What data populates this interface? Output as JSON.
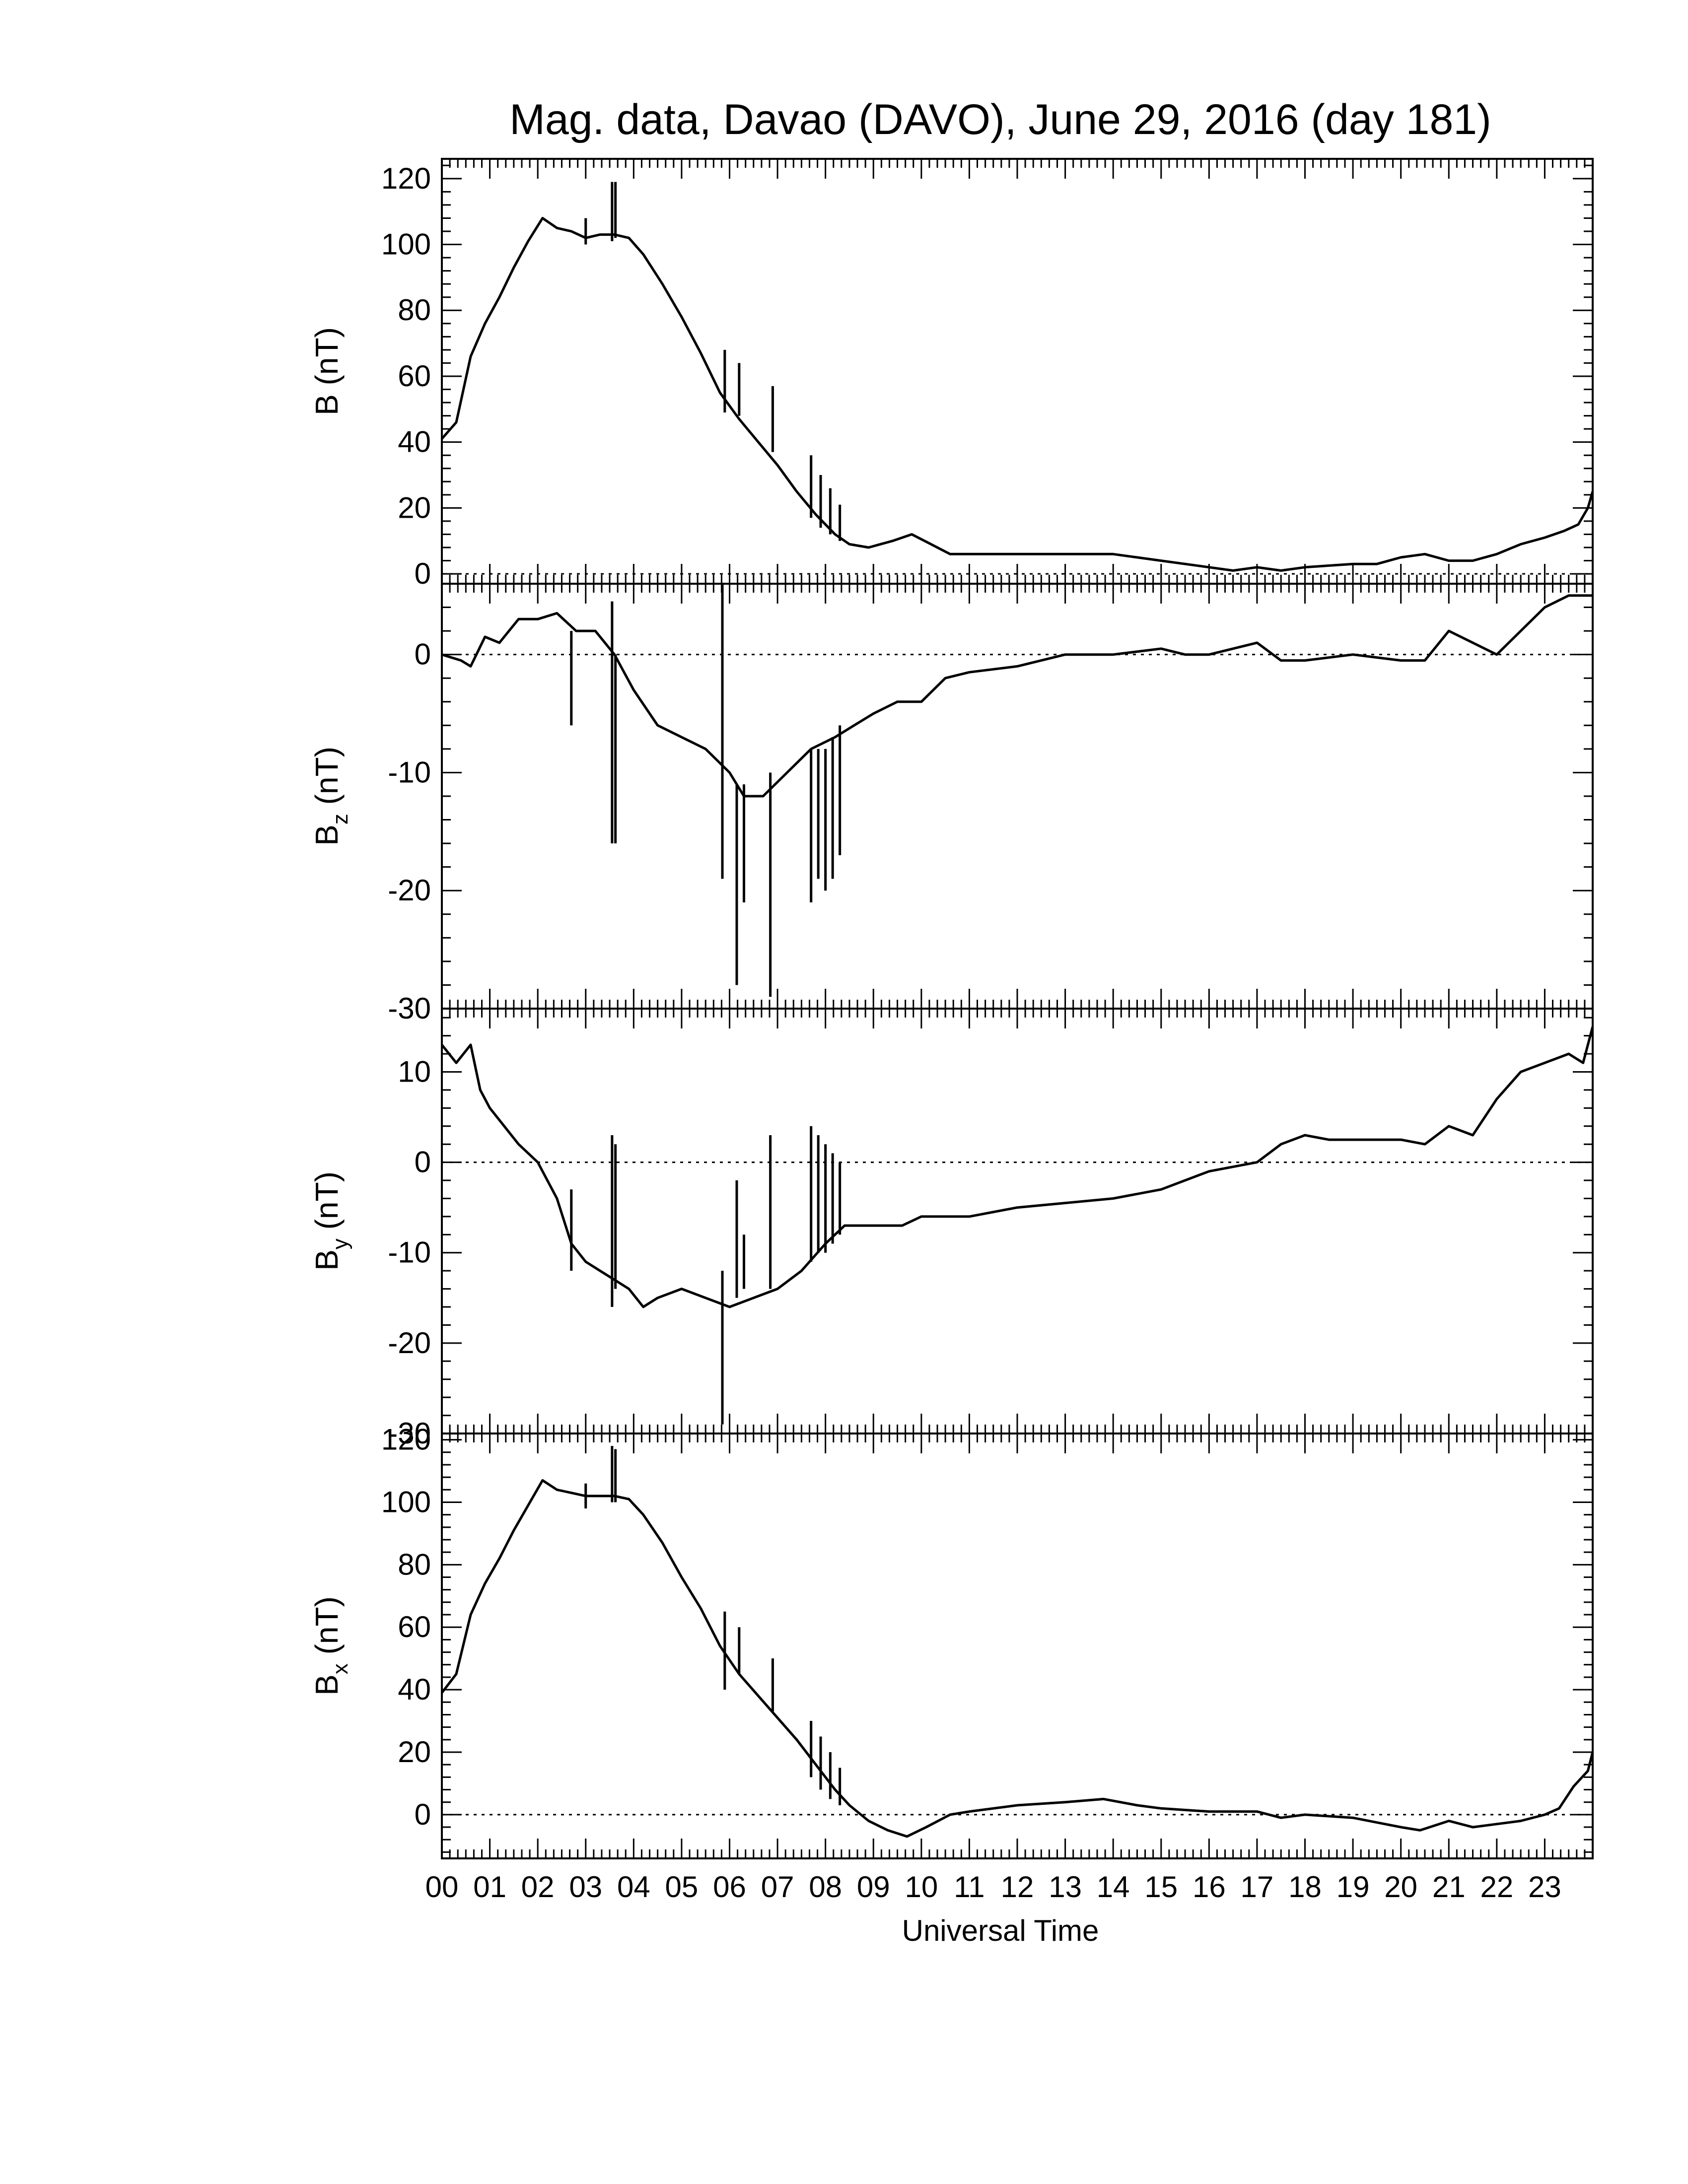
{
  "title": "Mag. data, Davao (DAVO), June 29, 2016 (day 181)",
  "xlabel": "Universal Time",
  "x_ticks": [
    "00",
    "01",
    "02",
    "03",
    "04",
    "05",
    "06",
    "07",
    "08",
    "09",
    "10",
    "11",
    "12",
    "13",
    "14",
    "15",
    "16",
    "17",
    "18",
    "19",
    "20",
    "21",
    "22",
    "23"
  ],
  "chart_data": [
    {
      "type": "line",
      "panel": "B",
      "ylabel_main": "B",
      "ylabel_sub": "",
      "ylabel_unit": "(nT)",
      "ylim": [
        -3,
        126
      ],
      "yticks": [
        0,
        20,
        40,
        60,
        80,
        100,
        120
      ],
      "zero_line": true,
      "x_unit": "hours UT",
      "x": [
        0,
        0.3,
        0.6,
        0.9,
        1.2,
        1.5,
        1.8,
        2.1,
        2.4,
        2.7,
        3.0,
        3.3,
        3.6,
        3.9,
        4.2,
        4.6,
        5.0,
        5.4,
        5.8,
        6.2,
        6.6,
        7.0,
        7.4,
        7.8,
        8.2,
        8.5,
        8.9,
        9.4,
        9.8,
        10.2,
        10.6,
        11.0,
        12.0,
        13.0,
        14.0,
        15.0,
        15.5,
        16.0,
        16.5,
        17.0,
        17.5,
        18.0,
        19.0,
        19.5,
        20.0,
        20.5,
        21.0,
        21.5,
        22.0,
        22.5,
        23.0,
        23.4,
        23.7,
        23.9,
        24.0
      ],
      "y": [
        41,
        46,
        66,
        76,
        84,
        93,
        101,
        108,
        105,
        104,
        102,
        103,
        103,
        102,
        97,
        88,
        78,
        67,
        55,
        47,
        40,
        33,
        25,
        18,
        12,
        9,
        8,
        10,
        12,
        9,
        6,
        6,
        6,
        6,
        6,
        4,
        3,
        2,
        1,
        2,
        1,
        2,
        3,
        3,
        5,
        6,
        4,
        4,
        6,
        9,
        11,
        13,
        15,
        20,
        25
      ],
      "spikes": [
        {
          "x": 3.0,
          "range": [
            100,
            108
          ]
        },
        {
          "x": 3.55,
          "range": [
            101,
            119
          ]
        },
        {
          "x": 3.62,
          "range": [
            102,
            119
          ]
        },
        {
          "x": 5.9,
          "range": [
            49,
            68
          ]
        },
        {
          "x": 6.2,
          "range": [
            48,
            64
          ]
        },
        {
          "x": 6.9,
          "range": [
            37,
            57
          ]
        },
        {
          "x": 7.7,
          "range": [
            17,
            36
          ]
        },
        {
          "x": 7.9,
          "range": [
            14,
            30
          ]
        },
        {
          "x": 8.1,
          "range": [
            12,
            26
          ]
        },
        {
          "x": 8.3,
          "range": [
            10,
            21
          ]
        }
      ]
    },
    {
      "type": "line",
      "panel": "Bz",
      "ylabel_main": "B",
      "ylabel_sub": "z",
      "ylabel_unit": "(nT)",
      "ylim": [
        -30,
        6
      ],
      "yticks": [
        -30,
        -20,
        -10,
        0
      ],
      "zero_line": true,
      "x_unit": "hours UT",
      "x": [
        0,
        0.4,
        0.6,
        0.9,
        1.2,
        1.6,
        2.0,
        2.4,
        2.8,
        3.2,
        3.6,
        4.0,
        4.5,
        5.0,
        5.5,
        6.0,
        6.3,
        6.7,
        7.2,
        7.7,
        8.2,
        8.6,
        9.0,
        9.5,
        10.0,
        10.5,
        11.0,
        12.0,
        13.0,
        14.0,
        15.0,
        15.5,
        16.0,
        16.5,
        17.0,
        17.5,
        18.0,
        19.0,
        20.0,
        20.5,
        21.0,
        21.5,
        22.0,
        22.5,
        23.0,
        23.5,
        24.0
      ],
      "y": [
        0,
        -0.5,
        -1,
        1.5,
        1,
        3,
        3,
        3.5,
        2,
        2,
        0,
        -3,
        -6,
        -7,
        -8,
        -10,
        -12,
        -12,
        -10,
        -8,
        -7,
        -6,
        -5,
        -4,
        -4,
        -2,
        -1.5,
        -1,
        0,
        0,
        0.5,
        0,
        0,
        0.5,
        1,
        -0.5,
        -0.5,
        0,
        -0.5,
        -0.5,
        2,
        1,
        0,
        2,
        4,
        5,
        5
      ],
      "spikes": [
        {
          "x": 2.7,
          "range": [
            -6,
            2
          ]
        },
        {
          "x": 3.55,
          "range": [
            -16,
            4.5
          ]
        },
        {
          "x": 3.62,
          "range": [
            -16,
            0
          ]
        },
        {
          "x": 5.85,
          "range": [
            -19,
            6
          ]
        },
        {
          "x": 6.15,
          "range": [
            -28,
            -11
          ]
        },
        {
          "x": 6.3,
          "range": [
            -21,
            -11
          ]
        },
        {
          "x": 6.85,
          "range": [
            -29,
            -10
          ]
        },
        {
          "x": 7.7,
          "range": [
            -21,
            -8
          ]
        },
        {
          "x": 7.85,
          "range": [
            -19,
            -8
          ]
        },
        {
          "x": 8.0,
          "range": [
            -20,
            -8
          ]
        },
        {
          "x": 8.15,
          "range": [
            -19,
            -7
          ]
        },
        {
          "x": 8.3,
          "range": [
            -17,
            -6
          ]
        }
      ]
    },
    {
      "type": "line",
      "panel": "By",
      "ylabel_main": "B",
      "ylabel_sub": "y",
      "ylabel_unit": "(nT)",
      "ylim": [
        -30,
        17
      ],
      "yticks": [
        -30,
        -20,
        -10,
        0,
        10
      ],
      "zero_line": true,
      "x_unit": "hours UT",
      "x": [
        0,
        0.3,
        0.6,
        0.8,
        1.0,
        1.3,
        1.6,
        2.0,
        2.4,
        2.7,
        3.0,
        3.3,
        3.6,
        3.9,
        4.2,
        4.5,
        5.0,
        5.5,
        6.0,
        6.5,
        7.0,
        7.5,
        8.0,
        8.4,
        8.8,
        9.2,
        9.6,
        10.0,
        11.0,
        12.0,
        13.0,
        14.0,
        15.0,
        16.0,
        17.0,
        17.5,
        18.0,
        18.5,
        19.0,
        20.0,
        20.5,
        21.0,
        21.5,
        22.0,
        22.5,
        23.0,
        23.5,
        23.8,
        24.0
      ],
      "y": [
        13,
        11,
        13,
        8,
        6,
        4,
        2,
        0,
        -4,
        -9,
        -11,
        -12,
        -13,
        -14,
        -16,
        -15,
        -14,
        -15,
        -16,
        -15,
        -14,
        -12,
        -9,
        -7,
        -7,
        -7,
        -7,
        -6,
        -6,
        -5,
        -4.5,
        -4,
        -3,
        -1,
        0,
        2,
        3,
        2.5,
        2.5,
        2.5,
        2,
        4,
        3,
        7,
        10,
        11,
        12,
        11,
        15
      ],
      "spikes": [
        {
          "x": 2.7,
          "range": [
            -12,
            -3
          ]
        },
        {
          "x": 3.55,
          "range": [
            -16,
            3
          ]
        },
        {
          "x": 3.62,
          "range": [
            -14,
            2
          ]
        },
        {
          "x": 5.85,
          "range": [
            -29,
            -12
          ]
        },
        {
          "x": 6.15,
          "range": [
            -15,
            -2
          ]
        },
        {
          "x": 6.3,
          "range": [
            -14,
            -8
          ]
        },
        {
          "x": 6.85,
          "range": [
            -14,
            3
          ]
        },
        {
          "x": 7.7,
          "range": [
            -11,
            4
          ]
        },
        {
          "x": 7.85,
          "range": [
            -10,
            3
          ]
        },
        {
          "x": 8.0,
          "range": [
            -10,
            2
          ]
        },
        {
          "x": 8.15,
          "range": [
            -9,
            1
          ]
        },
        {
          "x": 8.3,
          "range": [
            -8,
            0
          ]
        }
      ]
    },
    {
      "type": "line",
      "panel": "Bx",
      "ylabel_main": "B",
      "ylabel_sub": "x",
      "ylabel_unit": "(nT)",
      "ylim": [
        -14,
        122
      ],
      "yticks": [
        0,
        20,
        40,
        60,
        80,
        100,
        120
      ],
      "zero_line": true,
      "x_unit": "hours UT",
      "x": [
        0,
        0.3,
        0.6,
        0.9,
        1.2,
        1.5,
        1.8,
        2.1,
        2.4,
        2.7,
        3.0,
        3.3,
        3.6,
        3.9,
        4.2,
        4.6,
        5.0,
        5.4,
        5.8,
        6.2,
        6.6,
        7.0,
        7.4,
        7.8,
        8.2,
        8.5,
        8.9,
        9.3,
        9.7,
        10.1,
        10.6,
        11.0,
        12.0,
        13.0,
        13.8,
        14.5,
        15.0,
        16.0,
        17.0,
        17.5,
        18.0,
        19.0,
        20.0,
        20.4,
        21.0,
        21.5,
        22.0,
        22.5,
        23.0,
        23.3,
        23.6,
        23.9,
        24.0
      ],
      "y": [
        39,
        45,
        64,
        74,
        82,
        91,
        99,
        107,
        104,
        103,
        102,
        102,
        102,
        101,
        96,
        87,
        76,
        66,
        54,
        45,
        38,
        31,
        24,
        16,
        8,
        3,
        -2,
        -5,
        -7,
        -4,
        0,
        1,
        3,
        4,
        5,
        3,
        2,
        1,
        1,
        -1,
        0,
        -1,
        -4,
        -5,
        -2,
        -4,
        -3,
        -2,
        0,
        2,
        9,
        14,
        20
      ],
      "spikes": [
        {
          "x": 3.0,
          "range": [
            98,
            106
          ]
        },
        {
          "x": 3.55,
          "range": [
            100,
            118
          ]
        },
        {
          "x": 3.62,
          "range": [
            100,
            117
          ]
        },
        {
          "x": 5.9,
          "range": [
            40,
            65
          ]
        },
        {
          "x": 6.2,
          "range": [
            45,
            60
          ]
        },
        {
          "x": 6.9,
          "range": [
            33,
            50
          ]
        },
        {
          "x": 7.7,
          "range": [
            12,
            30
          ]
        },
        {
          "x": 7.9,
          "range": [
            8,
            25
          ]
        },
        {
          "x": 8.1,
          "range": [
            5,
            20
          ]
        },
        {
          "x": 8.3,
          "range": [
            3,
            15
          ]
        }
      ]
    }
  ]
}
